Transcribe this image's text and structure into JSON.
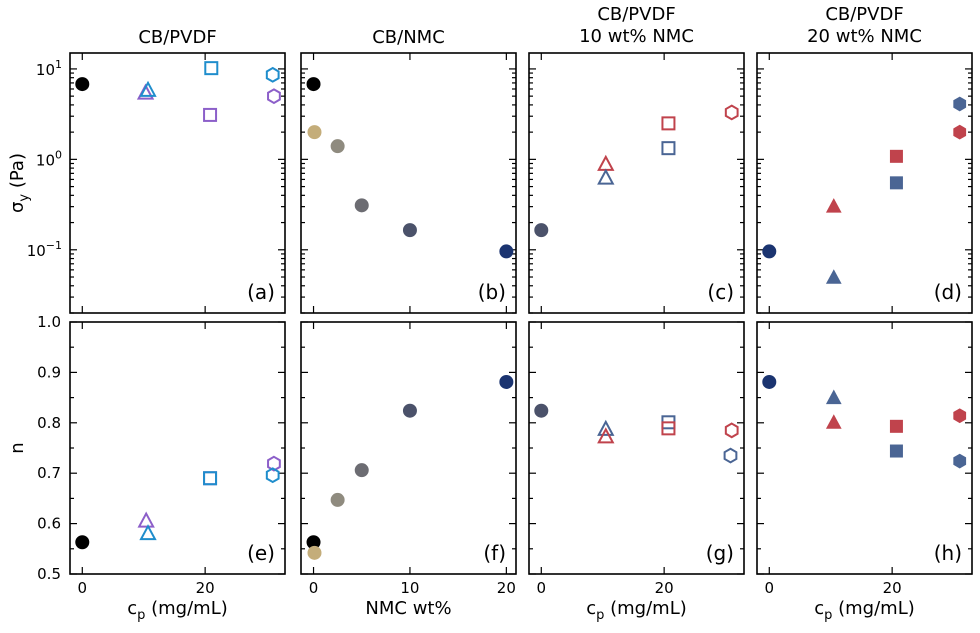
{
  "chart_data": [
    {
      "panel": "(a)",
      "type": "scatter",
      "title": [
        "CB/PVDF"
      ],
      "xlabel": "",
      "ylabel": "σy (Pa)",
      "yscale": "log",
      "ylim": [
        0.02,
        15
      ],
      "xlim": [
        -2,
        33
      ],
      "xticks": [
        {
          "v": 0,
          "label": "0"
        },
        {
          "v": 20,
          "label": "20"
        }
      ],
      "yticks": [
        {
          "v": 0.1,
          "label": "10",
          "exp": "−1"
        },
        {
          "v": 1,
          "label": "10",
          "exp": "0"
        },
        {
          "v": 10,
          "label": "10",
          "exp": "1"
        }
      ],
      "points": [
        {
          "x": 0,
          "y": 6.8,
          "shape": "circle",
          "color": "#000000",
          "filled": true
        },
        {
          "x": 10.3,
          "y": 5.4,
          "shape": "triangle",
          "color": "#8c5fc9",
          "filled": false
        },
        {
          "x": 10.7,
          "y": 5.8,
          "shape": "triangle",
          "color": "#1f8dcc",
          "filled": false
        },
        {
          "x": 20.8,
          "y": 3.1,
          "shape": "square",
          "color": "#8c5fc9",
          "filled": false
        },
        {
          "x": 21.0,
          "y": 10.2,
          "shape": "square",
          "color": "#1f8dcc",
          "filled": false
        },
        {
          "x": 31.2,
          "y": 5.0,
          "shape": "hexagon",
          "color": "#8c5fc9",
          "filled": false
        },
        {
          "x": 31.0,
          "y": 8.6,
          "shape": "hexagon",
          "color": "#1f8dcc",
          "filled": false
        }
      ]
    },
    {
      "panel": "(b)",
      "type": "scatter",
      "title": [
        "CB/NMC"
      ],
      "xlabel": "",
      "ylabel": "",
      "yscale": "log",
      "ylim": [
        0.02,
        15
      ],
      "xlim": [
        -1.3,
        21
      ],
      "xticks": [
        {
          "v": 0,
          "label": "0"
        },
        {
          "v": 10,
          "label": "10"
        },
        {
          "v": 20,
          "label": "20"
        }
      ],
      "points": [
        {
          "x": 0,
          "y": 6.8,
          "shape": "circle",
          "color": "#000000",
          "filled": true
        },
        {
          "x": 0.1,
          "y": 2.0,
          "shape": "circle",
          "color": "#c4ad7a",
          "filled": true
        },
        {
          "x": 2.5,
          "y": 1.4,
          "shape": "circle",
          "color": "#8f8b7f",
          "filled": true
        },
        {
          "x": 5.0,
          "y": 0.31,
          "shape": "circle",
          "color": "#6c6c72",
          "filled": true
        },
        {
          "x": 10.0,
          "y": 0.165,
          "shape": "circle",
          "color": "#4b526a",
          "filled": true
        },
        {
          "x": 20.0,
          "y": 0.096,
          "shape": "circle",
          "color": "#1b3470",
          "filled": true
        }
      ]
    },
    {
      "panel": "(c)",
      "type": "scatter",
      "title": [
        "CB/PVDF",
        "10 wt% NMC"
      ],
      "xlabel": "",
      "ylabel": "",
      "yscale": "log",
      "ylim": [
        0.02,
        15
      ],
      "xlim": [
        -2,
        33
      ],
      "xticks": [
        {
          "v": 0,
          "label": "0"
        },
        {
          "v": 20,
          "label": "20"
        }
      ],
      "points": [
        {
          "x": 0,
          "y": 0.165,
          "shape": "circle",
          "color": "#4b526a",
          "filled": true
        },
        {
          "x": 10.5,
          "y": 0.88,
          "shape": "triangle",
          "color": "#c0434c",
          "filled": false
        },
        {
          "x": 10.5,
          "y": 0.62,
          "shape": "triangle",
          "color": "#4a6594",
          "filled": false
        },
        {
          "x": 20.7,
          "y": 2.5,
          "shape": "square",
          "color": "#c0434c",
          "filled": false
        },
        {
          "x": 20.7,
          "y": 1.33,
          "shape": "square",
          "color": "#4a6594",
          "filled": false
        },
        {
          "x": 31.0,
          "y": 3.3,
          "shape": "hexagon",
          "color": "#c0434c",
          "filled": false
        }
      ]
    },
    {
      "panel": "(d)",
      "type": "scatter",
      "title": [
        "CB/PVDF",
        "20 wt% NMC"
      ],
      "xlabel": "",
      "ylabel": "",
      "yscale": "log",
      "ylim": [
        0.02,
        15
      ],
      "xlim": [
        -2,
        33
      ],
      "xticks": [
        {
          "v": 0,
          "label": "0"
        },
        {
          "v": 20,
          "label": "20"
        }
      ],
      "points": [
        {
          "x": 0,
          "y": 0.096,
          "shape": "circle",
          "color": "#1b3470",
          "filled": true
        },
        {
          "x": 10.5,
          "y": 0.3,
          "shape": "triangle",
          "color": "#c0434c",
          "filled": true
        },
        {
          "x": 10.5,
          "y": 0.049,
          "shape": "triangle",
          "color": "#4a6594",
          "filled": true
        },
        {
          "x": 20.7,
          "y": 1.08,
          "shape": "square",
          "color": "#c0434c",
          "filled": true
        },
        {
          "x": 20.7,
          "y": 0.55,
          "shape": "square",
          "color": "#4a6594",
          "filled": true
        },
        {
          "x": 31.0,
          "y": 2.0,
          "shape": "hexagon",
          "color": "#c0434c",
          "filled": true
        },
        {
          "x": 31.0,
          "y": 4.1,
          "shape": "hexagon",
          "color": "#4a6594",
          "filled": true
        }
      ]
    },
    {
      "panel": "(e)",
      "type": "scatter",
      "title": [],
      "xlabel": "c",
      "xlabel_sub": "p",
      "xlabel_tail": " (mg/mL)",
      "ylabel": "n",
      "yscale": "linear",
      "ylim": [
        0.5,
        1.0
      ],
      "xlim": [
        -2,
        33
      ],
      "xticks": [
        {
          "v": 0,
          "label": "0"
        },
        {
          "v": 20,
          "label": "20"
        }
      ],
      "yticks": [
        {
          "v": 0.5,
          "label": "0.5"
        },
        {
          "v": 0.6,
          "label": "0.6"
        },
        {
          "v": 0.7,
          "label": "0.7"
        },
        {
          "v": 0.8,
          "label": "0.8"
        },
        {
          "v": 0.9,
          "label": "0.9"
        },
        {
          "v": 1.0,
          "label": "1.0"
        }
      ],
      "points": [
        {
          "x": 0,
          "y": 0.563,
          "shape": "circle",
          "color": "#000000",
          "filled": true
        },
        {
          "x": 10.4,
          "y": 0.605,
          "shape": "triangle",
          "color": "#8c5fc9",
          "filled": false
        },
        {
          "x": 10.7,
          "y": 0.58,
          "shape": "triangle",
          "color": "#1f8dcc",
          "filled": false
        },
        {
          "x": 20.8,
          "y": 0.69,
          "shape": "square",
          "color": "#8c5fc9",
          "filled": false
        },
        {
          "x": 20.8,
          "y": 0.69,
          "shape": "square",
          "color": "#1f8dcc",
          "filled": false
        },
        {
          "x": 31.2,
          "y": 0.719,
          "shape": "hexagon",
          "color": "#8c5fc9",
          "filled": false
        },
        {
          "x": 31.0,
          "y": 0.696,
          "shape": "hexagon",
          "color": "#1f8dcc",
          "filled": false
        }
      ]
    },
    {
      "panel": "(f)",
      "type": "scatter",
      "title": [],
      "xlabel": "NMC  wt%",
      "ylabel": "",
      "yscale": "linear",
      "ylim": [
        0.5,
        1.0
      ],
      "xlim": [
        -1.3,
        21
      ],
      "xticks": [
        {
          "v": 0,
          "label": "0"
        },
        {
          "v": 10,
          "label": "10"
        },
        {
          "v": 20,
          "label": "20"
        }
      ],
      "points": [
        {
          "x": 0,
          "y": 0.563,
          "shape": "circle",
          "color": "#000000",
          "filled": true
        },
        {
          "x": 0.1,
          "y": 0.542,
          "shape": "circle",
          "color": "#c4ad7a",
          "filled": true
        },
        {
          "x": 2.5,
          "y": 0.647,
          "shape": "circle",
          "color": "#8f8b7f",
          "filled": true
        },
        {
          "x": 5.0,
          "y": 0.706,
          "shape": "circle",
          "color": "#6c6c72",
          "filled": true
        },
        {
          "x": 10.0,
          "y": 0.824,
          "shape": "circle",
          "color": "#4b526a",
          "filled": true
        },
        {
          "x": 20.0,
          "y": 0.881,
          "shape": "circle",
          "color": "#1b3470",
          "filled": true
        }
      ]
    },
    {
      "panel": "(g)",
      "type": "scatter",
      "title": [],
      "xlabel": "c",
      "xlabel_sub": "p",
      "xlabel_tail": " (mg/mL)",
      "ylabel": "",
      "yscale": "linear",
      "ylim": [
        0.5,
        1.0
      ],
      "xlim": [
        -2,
        33
      ],
      "xticks": [
        {
          "v": 0,
          "label": "0"
        },
        {
          "v": 20,
          "label": "20"
        }
      ],
      "points": [
        {
          "x": 0,
          "y": 0.824,
          "shape": "circle",
          "color": "#4b526a",
          "filled": true
        },
        {
          "x": 10.5,
          "y": 0.787,
          "shape": "triangle",
          "color": "#4a6594",
          "filled": false
        },
        {
          "x": 10.5,
          "y": 0.772,
          "shape": "triangle",
          "color": "#c0434c",
          "filled": false
        },
        {
          "x": 20.7,
          "y": 0.801,
          "shape": "square",
          "color": "#4a6594",
          "filled": false
        },
        {
          "x": 20.7,
          "y": 0.789,
          "shape": "square",
          "color": "#c0434c",
          "filled": false
        },
        {
          "x": 31.0,
          "y": 0.785,
          "shape": "hexagon",
          "color": "#c0434c",
          "filled": false
        },
        {
          "x": 30.8,
          "y": 0.735,
          "shape": "hexagon",
          "color": "#4a6594",
          "filled": false
        }
      ]
    },
    {
      "panel": "(h)",
      "type": "scatter",
      "title": [],
      "xlabel": "c",
      "xlabel_sub": "p",
      "xlabel_tail": " (mg/mL)",
      "ylabel": "",
      "yscale": "linear",
      "ylim": [
        0.5,
        1.0
      ],
      "xlim": [
        -2,
        33
      ],
      "xticks": [
        {
          "v": 0,
          "label": "0"
        },
        {
          "v": 20,
          "label": "20"
        }
      ],
      "points": [
        {
          "x": 0,
          "y": 0.881,
          "shape": "circle",
          "color": "#1b3470",
          "filled": true
        },
        {
          "x": 10.5,
          "y": 0.849,
          "shape": "triangle",
          "color": "#4a6594",
          "filled": true
        },
        {
          "x": 10.5,
          "y": 0.8,
          "shape": "triangle",
          "color": "#c0434c",
          "filled": true
        },
        {
          "x": 20.7,
          "y": 0.793,
          "shape": "square",
          "color": "#c0434c",
          "filled": true
        },
        {
          "x": 20.7,
          "y": 0.744,
          "shape": "square",
          "color": "#4a6594",
          "filled": true
        },
        {
          "x": 31.0,
          "y": 0.814,
          "shape": "hexagon",
          "color": "#c0434c",
          "filled": true
        },
        {
          "x": 31.0,
          "y": 0.724,
          "shape": "hexagon",
          "color": "#4a6594",
          "filled": true
        }
      ]
    }
  ]
}
